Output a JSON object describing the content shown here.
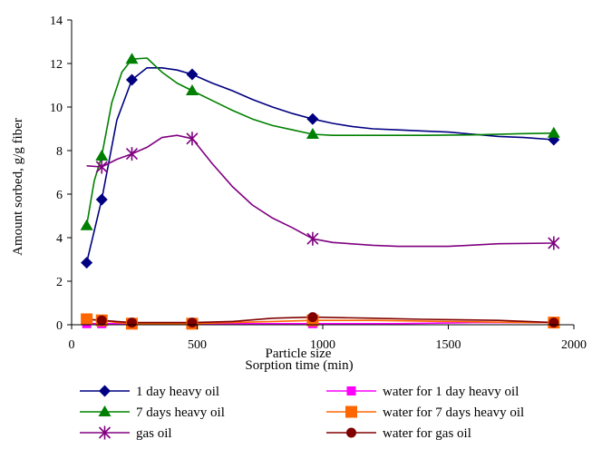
{
  "chart_data": {
    "type": "line",
    "title": "",
    "xlabel": "Sorption time (min)",
    "xlabel_overlap": "Particle size",
    "ylabel": "Amount sorbed, g/g fiber",
    "xlim": [
      0,
      2000
    ],
    "ylim": [
      0,
      14
    ],
    "x_ticks": [
      0,
      500,
      1000,
      1500,
      2000
    ],
    "y_ticks": [
      0,
      2,
      4,
      6,
      8,
      10,
      12,
      14
    ],
    "grid": false,
    "legend_position": "bottom",
    "series": [
      {
        "name": "1 day heavy oil",
        "color": "#000080",
        "marker": "diamond",
        "points": [
          [
            60,
            2.85
          ],
          [
            120,
            5.75
          ],
          [
            240,
            11.25
          ],
          [
            480,
            11.5
          ],
          [
            960,
            9.45
          ],
          [
            1920,
            8.5
          ]
        ],
        "curve": [
          [
            60,
            2.85
          ],
          [
            120,
            5.75
          ],
          [
            180,
            9.4
          ],
          [
            240,
            11.25
          ],
          [
            300,
            11.8
          ],
          [
            360,
            11.8
          ],
          [
            420,
            11.7
          ],
          [
            480,
            11.5
          ],
          [
            560,
            11.1
          ],
          [
            640,
            10.75
          ],
          [
            720,
            10.35
          ],
          [
            800,
            10.0
          ],
          [
            880,
            9.7
          ],
          [
            960,
            9.45
          ],
          [
            1040,
            9.25
          ],
          [
            1120,
            9.1
          ],
          [
            1200,
            9.0
          ],
          [
            1300,
            8.95
          ],
          [
            1400,
            8.9
          ],
          [
            1500,
            8.85
          ],
          [
            1600,
            8.75
          ],
          [
            1700,
            8.65
          ],
          [
            1800,
            8.6
          ],
          [
            1920,
            8.5
          ]
        ]
      },
      {
        "name": "7 days heavy oil",
        "color": "#008000",
        "marker": "triangle",
        "points": [
          [
            60,
            4.55
          ],
          [
            120,
            7.75
          ],
          [
            240,
            12.2
          ],
          [
            480,
            10.75
          ],
          [
            960,
            8.75
          ],
          [
            1920,
            8.8
          ]
        ],
        "curve": [
          [
            60,
            4.55
          ],
          [
            90,
            6.6
          ],
          [
            120,
            7.75
          ],
          [
            160,
            10.2
          ],
          [
            200,
            11.6
          ],
          [
            240,
            12.2
          ],
          [
            300,
            12.25
          ],
          [
            360,
            11.6
          ],
          [
            420,
            11.1
          ],
          [
            480,
            10.75
          ],
          [
            560,
            10.3
          ],
          [
            640,
            9.85
          ],
          [
            720,
            9.45
          ],
          [
            800,
            9.15
          ],
          [
            880,
            8.95
          ],
          [
            960,
            8.75
          ],
          [
            1040,
            8.7
          ],
          [
            1200,
            8.7
          ],
          [
            1400,
            8.7
          ],
          [
            1600,
            8.72
          ],
          [
            1800,
            8.78
          ],
          [
            1920,
            8.8
          ]
        ]
      },
      {
        "name": "gas oil",
        "color": "#800080",
        "marker": "star",
        "points": [
          [
            120,
            7.25
          ],
          [
            240,
            7.85
          ],
          [
            480,
            8.55
          ],
          [
            960,
            3.95
          ],
          [
            1920,
            3.75
          ]
        ],
        "curve": [
          [
            60,
            7.3
          ],
          [
            120,
            7.25
          ],
          [
            180,
            7.6
          ],
          [
            240,
            7.85
          ],
          [
            300,
            8.15
          ],
          [
            360,
            8.6
          ],
          [
            420,
            8.7
          ],
          [
            480,
            8.55
          ],
          [
            560,
            7.4
          ],
          [
            640,
            6.35
          ],
          [
            720,
            5.5
          ],
          [
            800,
            4.9
          ],
          [
            880,
            4.45
          ],
          [
            960,
            3.95
          ],
          [
            1040,
            3.78
          ],
          [
            1200,
            3.65
          ],
          [
            1300,
            3.6
          ],
          [
            1500,
            3.6
          ],
          [
            1700,
            3.72
          ],
          [
            1920,
            3.75
          ]
        ]
      },
      {
        "name": "water for 1 day heavy oil",
        "color": "#ff00ff",
        "marker": "square",
        "points": [
          [
            60,
            0.05
          ],
          [
            120,
            0.05
          ],
          [
            240,
            0.05
          ],
          [
            480,
            0.05
          ],
          [
            960,
            0.05
          ],
          [
            1920,
            0.05
          ]
        ],
        "curve": [
          [
            60,
            0.05
          ],
          [
            240,
            0.05
          ],
          [
            480,
            0.05
          ],
          [
            960,
            0.05
          ],
          [
            1300,
            0.05
          ],
          [
            1600,
            0.1
          ],
          [
            1920,
            0.1
          ]
        ]
      },
      {
        "name": "water for 7 days heavy oil",
        "color": "#ff6600",
        "marker": "square-large",
        "points": [
          [
            60,
            0.25
          ],
          [
            120,
            0.2
          ],
          [
            240,
            0.05
          ],
          [
            480,
            0.05
          ],
          [
            960,
            0.2
          ],
          [
            1920,
            0.1
          ]
        ],
        "curve": [
          [
            60,
            0.25
          ],
          [
            120,
            0.2
          ],
          [
            180,
            0.1
          ],
          [
            240,
            0.05
          ],
          [
            480,
            0.05
          ],
          [
            640,
            0.1
          ],
          [
            800,
            0.15
          ],
          [
            960,
            0.2
          ],
          [
            1200,
            0.2
          ],
          [
            1500,
            0.15
          ],
          [
            1800,
            0.1
          ],
          [
            1920,
            0.1
          ]
        ]
      },
      {
        "name": "water for gas oil",
        "color": "#800000",
        "marker": "circle",
        "points": [
          [
            120,
            0.2
          ],
          [
            240,
            0.1
          ],
          [
            480,
            0.1
          ],
          [
            960,
            0.35
          ],
          [
            1920,
            0.1
          ]
        ],
        "curve": [
          [
            60,
            0.25
          ],
          [
            120,
            0.2
          ],
          [
            240,
            0.1
          ],
          [
            480,
            0.1
          ],
          [
            640,
            0.15
          ],
          [
            800,
            0.3
          ],
          [
            960,
            0.35
          ],
          [
            1200,
            0.3
          ],
          [
            1400,
            0.25
          ],
          [
            1700,
            0.2
          ],
          [
            1920,
            0.1
          ]
        ]
      }
    ]
  }
}
